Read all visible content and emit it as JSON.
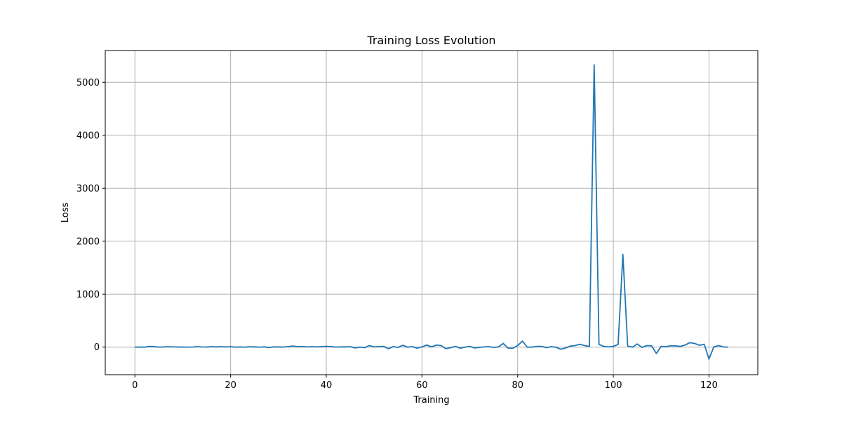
{
  "chart_data": {
    "type": "line",
    "title": "Training Loss Evolution",
    "xlabel": "Training",
    "ylabel": "Loss",
    "xlim": [
      -6.2,
      130.2
    ],
    "ylim": [
      -520,
      5600
    ],
    "xticks": [
      0,
      20,
      40,
      60,
      80,
      100,
      120
    ],
    "yticks": [
      0,
      1000,
      2000,
      3000,
      4000,
      5000
    ],
    "grid": true,
    "line_color": "#1f77b4",
    "series": [
      {
        "values": [
          0,
          2,
          0,
          14,
          12,
          0,
          5,
          8,
          5,
          3,
          2,
          0,
          2,
          10,
          3,
          2,
          10,
          4,
          10,
          3,
          10,
          0,
          3,
          0,
          8,
          4,
          0,
          5,
          -8,
          5,
          4,
          2,
          10,
          22,
          10,
          12,
          5,
          10,
          5,
          10,
          15,
          12,
          2,
          5,
          4,
          10,
          -15,
          0,
          -10,
          30,
          5,
          10,
          15,
          -30,
          10,
          -5,
          35,
          0,
          10,
          -20,
          5,
          40,
          5,
          40,
          30,
          -30,
          -10,
          15,
          -20,
          0,
          15,
          -15,
          -5,
          5,
          10,
          -5,
          5,
          70,
          -20,
          -20,
          30,
          115,
          0,
          0,
          15,
          15,
          -10,
          10,
          0,
          -40,
          -15,
          20,
          30,
          55,
          30,
          15,
          5330,
          50,
          15,
          5,
          15,
          50,
          1750,
          20,
          0,
          60,
          -5,
          30,
          25,
          -120,
          15,
          10,
          25,
          25,
          15,
          40,
          85,
          70,
          35,
          55,
          -225,
          5,
          30,
          5,
          0
        ]
      }
    ]
  }
}
